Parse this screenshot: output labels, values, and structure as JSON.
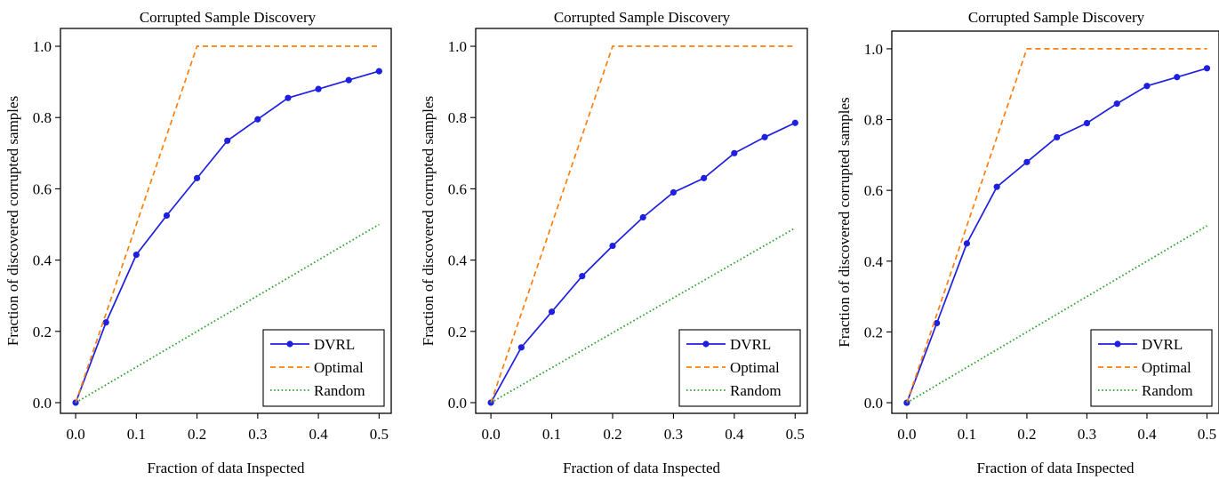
{
  "figure": {
    "colors": {
      "dvrl": "#1f1fe0",
      "optimal": "#ff7f0e",
      "random": "#2ca02c",
      "axis": "#000000"
    }
  },
  "chart_data": [
    {
      "type": "line",
      "title": "Corrupted Sample Discovery",
      "xlabel": "Fraction of data Inspected",
      "ylabel": "Fraction of discovered corrupted samples",
      "xlim": [
        -0.025,
        0.52
      ],
      "ylim": [
        -0.03,
        1.05
      ],
      "xticks": [
        "0.0",
        "0.1",
        "0.2",
        "0.3",
        "0.4",
        "0.5"
      ],
      "yticks": [
        "0.0",
        "0.2",
        "0.4",
        "0.6",
        "0.8",
        "1.0"
      ],
      "grid": false,
      "legend_position": "bottom-right",
      "series": [
        {
          "name": "DVRL",
          "style": "solid-marker",
          "x": [
            0.0,
            0.05,
            0.1,
            0.15,
            0.2,
            0.25,
            0.3,
            0.35,
            0.4,
            0.45,
            0.5
          ],
          "y": [
            0.0,
            0.225,
            0.415,
            0.525,
            0.63,
            0.735,
            0.795,
            0.855,
            0.88,
            0.905,
            0.93
          ]
        },
        {
          "name": "Optimal",
          "style": "dashed",
          "x": [
            0.0,
            0.2,
            0.5
          ],
          "y": [
            0.0,
            1.0,
            1.0
          ]
        },
        {
          "name": "Random",
          "style": "dotted",
          "x": [
            0.0,
            0.5
          ],
          "y": [
            0.0,
            0.5
          ]
        }
      ]
    },
    {
      "type": "line",
      "title": "Corrupted Sample Discovery",
      "xlabel": "Fraction of data Inspected",
      "ylabel": "Fraction of discovered corrupted samples",
      "xlim": [
        -0.025,
        0.52
      ],
      "ylim": [
        -0.03,
        1.05
      ],
      "xticks": [
        "0.0",
        "0.1",
        "0.2",
        "0.3",
        "0.4",
        "0.5"
      ],
      "yticks": [
        "0.0",
        "0.2",
        "0.4",
        "0.6",
        "0.8",
        "1.0"
      ],
      "grid": false,
      "legend_position": "bottom-right",
      "series": [
        {
          "name": "DVRL",
          "style": "solid-marker",
          "x": [
            0.0,
            0.05,
            0.1,
            0.15,
            0.2,
            0.25,
            0.3,
            0.35,
            0.4,
            0.45,
            0.5
          ],
          "y": [
            0.0,
            0.155,
            0.255,
            0.355,
            0.44,
            0.52,
            0.59,
            0.63,
            0.7,
            0.745,
            0.785
          ]
        },
        {
          "name": "Optimal",
          "style": "dashed",
          "x": [
            0.0,
            0.2,
            0.5
          ],
          "y": [
            0.0,
            1.0,
            1.0
          ]
        },
        {
          "name": "Random",
          "style": "dotted",
          "x": [
            0.0,
            0.5
          ],
          "y": [
            0.0,
            0.49
          ]
        }
      ]
    },
    {
      "type": "line",
      "title": "Corrupted Sample Discovery",
      "xlabel": "Fraction of data Inspected",
      "ylabel": "Fraction of discovered corrupted samples",
      "xlim": [
        -0.025,
        0.52
      ],
      "ylim": [
        -0.03,
        1.05
      ],
      "xticks": [
        "0.0",
        "0.1",
        "0.2",
        "0.3",
        "0.4",
        "0.5"
      ],
      "yticks": [
        "0.0",
        "0.2",
        "0.4",
        "0.6",
        "0.8",
        "1.0"
      ],
      "grid": false,
      "legend_position": "bottom-right",
      "series": [
        {
          "name": "DVRL",
          "style": "solid-marker",
          "x": [
            0.0,
            0.05,
            0.1,
            0.15,
            0.2,
            0.25,
            0.3,
            0.35,
            0.4,
            0.45,
            0.5
          ],
          "y": [
            0.0,
            0.225,
            0.45,
            0.61,
            0.68,
            0.75,
            0.79,
            0.845,
            0.895,
            0.92,
            0.945
          ]
        },
        {
          "name": "Optimal",
          "style": "dashed",
          "x": [
            0.0,
            0.2,
            0.5
          ],
          "y": [
            0.0,
            1.0,
            1.0
          ]
        },
        {
          "name": "Random",
          "style": "dotted",
          "x": [
            0.0,
            0.5
          ],
          "y": [
            0.0,
            0.5
          ]
        }
      ]
    }
  ]
}
